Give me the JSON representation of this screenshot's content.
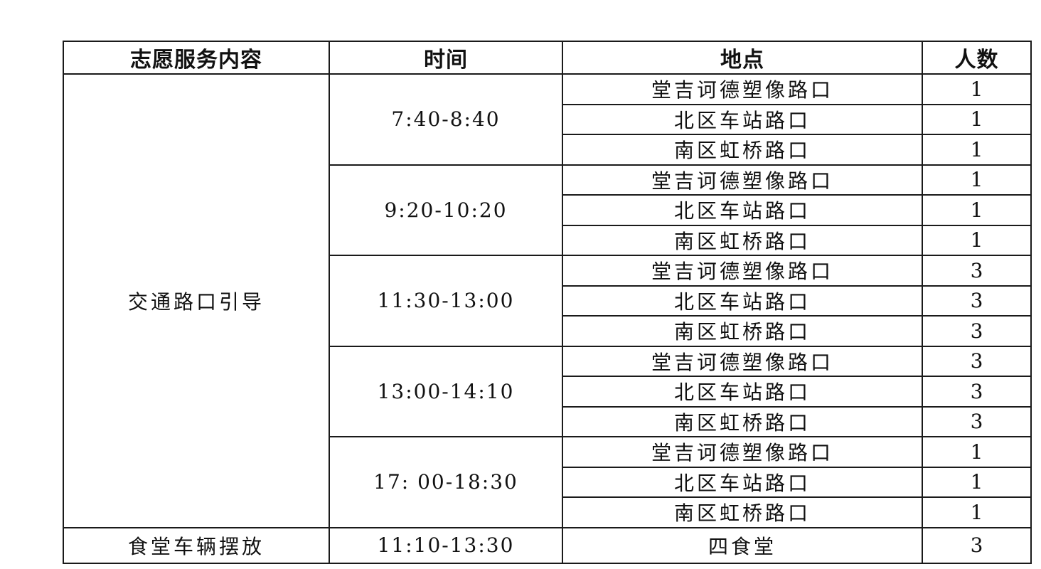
{
  "headers": [
    "志愿服务内容",
    "时间",
    "地点",
    "人数"
  ],
  "groups": [
    {
      "service": "交通路口引导",
      "slots": [
        {
          "time": "7:40-8:40",
          "locations": [
            {
              "place": "堂吉诃德塑像路口",
              "count": "1"
            },
            {
              "place": "北区车站路口",
              "count": "1"
            },
            {
              "place": "南区虹桥路口",
              "count": "1"
            }
          ]
        },
        {
          "time": "9:20-10:20",
          "locations": [
            {
              "place": "堂吉诃德塑像路口",
              "count": "1"
            },
            {
              "place": "北区车站路口",
              "count": "1"
            },
            {
              "place": "南区虹桥路口",
              "count": "1"
            }
          ]
        },
        {
          "time": "11:30-13:00",
          "locations": [
            {
              "place": "堂吉诃德塑像路口",
              "count": "3"
            },
            {
              "place": "北区车站路口",
              "count": "3"
            },
            {
              "place": "南区虹桥路口",
              "count": "3"
            }
          ]
        },
        {
          "time": "13:00-14:10",
          "locations": [
            {
              "place": "堂吉诃德塑像路口",
              "count": "3"
            },
            {
              "place": "北区车站路口",
              "count": "3"
            },
            {
              "place": "南区虹桥路口",
              "count": "3"
            }
          ]
        },
        {
          "time": "17: 00-18:30",
          "locations": [
            {
              "place": "堂吉诃德塑像路口",
              "count": "1"
            },
            {
              "place": "北区车站路口",
              "count": "1"
            },
            {
              "place": "南区虹桥路口",
              "count": "1"
            }
          ]
        }
      ]
    },
    {
      "service": "食堂车辆摆放",
      "slots": [
        {
          "time": "11:10-13:30",
          "locations": [
            {
              "place": "四食堂",
              "count": "3"
            }
          ]
        }
      ]
    }
  ]
}
